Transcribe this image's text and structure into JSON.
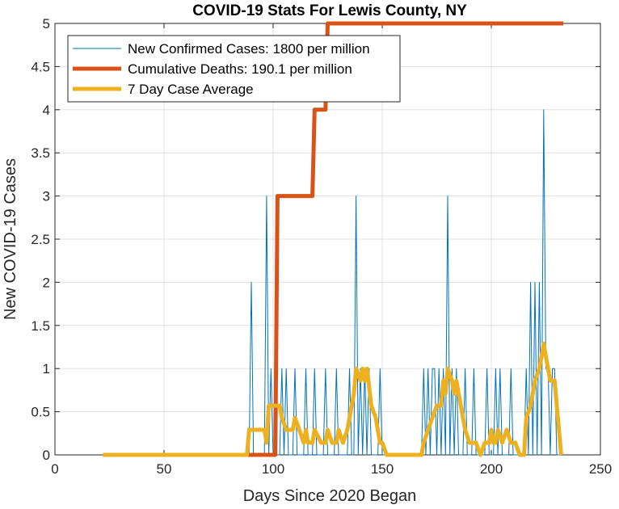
{
  "chart_data": {
    "type": "line",
    "title": "COVID-19 Stats For Lewis County, NY",
    "xlabel": "Days Since 2020 Began",
    "ylabel": "New COVID-19 Cases",
    "xlim": [
      0,
      250
    ],
    "ylim": [
      0,
      5
    ],
    "xticks": [
      0,
      50,
      100,
      150,
      200,
      250
    ],
    "yticks": [
      0,
      0.5,
      1,
      1.5,
      2,
      2.5,
      3,
      3.5,
      4,
      4.5,
      5
    ],
    "xtick_labels": [
      "0",
      "50",
      "100",
      "150",
      "200",
      "250"
    ],
    "ytick_labels": [
      "0",
      "0.5",
      "1",
      "1.5",
      "2",
      "2.5",
      "3",
      "3.5",
      "4",
      "4.5",
      "5"
    ],
    "grid": true,
    "legend_position": "top-left",
    "series": [
      {
        "name": "New Confirmed Cases: 1800 per million",
        "color": "#0072BD",
        "style": "thin",
        "points": [
          [
            22,
            0
          ],
          [
            89,
            0
          ],
          [
            90,
            2
          ],
          [
            91,
            0
          ],
          [
            96,
            0
          ],
          [
            97,
            3
          ],
          [
            98,
            0
          ],
          [
            99,
            1
          ],
          [
            100,
            0
          ],
          [
            103,
            0
          ],
          [
            104,
            1
          ],
          [
            105,
            0
          ],
          [
            106,
            1
          ],
          [
            107,
            0
          ],
          [
            109,
            0
          ],
          [
            110,
            1
          ],
          [
            111,
            0
          ],
          [
            114,
            0
          ],
          [
            115,
            1
          ],
          [
            116,
            0
          ],
          [
            118,
            0
          ],
          [
            119,
            1
          ],
          [
            120,
            0
          ],
          [
            123,
            0
          ],
          [
            124,
            1
          ],
          [
            125,
            0
          ],
          [
            128,
            0
          ],
          [
            129,
            1
          ],
          [
            130,
            0
          ],
          [
            134,
            0
          ],
          [
            135,
            1
          ],
          [
            136,
            0
          ],
          [
            137,
            0
          ],
          [
            138,
            3
          ],
          [
            139,
            0
          ],
          [
            140,
            1
          ],
          [
            141,
            0
          ],
          [
            142,
            1
          ],
          [
            143,
            0
          ],
          [
            144,
            1
          ],
          [
            145,
            0
          ],
          [
            148,
            0
          ],
          [
            149,
            1
          ],
          [
            150,
            0
          ],
          [
            168,
            0
          ],
          [
            169,
            1
          ],
          [
            170,
            0
          ],
          [
            171,
            1
          ],
          [
            172,
            0
          ],
          [
            173,
            1
          ],
          [
            174,
            1
          ],
          [
            175,
            0
          ],
          [
            176,
            1
          ],
          [
            177,
            0
          ],
          [
            178,
            1
          ],
          [
            179,
            0
          ],
          [
            180,
            3
          ],
          [
            181,
            0
          ],
          [
            182,
            1
          ],
          [
            183,
            0
          ],
          [
            184,
            1
          ],
          [
            185,
            0
          ],
          [
            187,
            0
          ],
          [
            188,
            1
          ],
          [
            189,
            0
          ],
          [
            191,
            0
          ],
          [
            192,
            1
          ],
          [
            193,
            0
          ],
          [
            197,
            0
          ],
          [
            198,
            1
          ],
          [
            199,
            0
          ],
          [
            201,
            0
          ],
          [
            202,
            1
          ],
          [
            203,
            0
          ],
          [
            204,
            1
          ],
          [
            205,
            0
          ],
          [
            208,
            0
          ],
          [
            209,
            1
          ],
          [
            210,
            0
          ],
          [
            215,
            0
          ],
          [
            216,
            1
          ],
          [
            217,
            0
          ],
          [
            218,
            2
          ],
          [
            219,
            0
          ],
          [
            220,
            2
          ],
          [
            221,
            0
          ],
          [
            222,
            2
          ],
          [
            223,
            0
          ],
          [
            224,
            4
          ],
          [
            225,
            1
          ],
          [
            226,
            1
          ],
          [
            227,
            0
          ],
          [
            228,
            1
          ],
          [
            229,
            1
          ],
          [
            230,
            0
          ],
          [
            232,
            0
          ]
        ]
      },
      {
        "name": "Cumulative Deaths: 190.1 per million",
        "color": "#D95319",
        "style": "thick",
        "points": [
          [
            22,
            0
          ],
          [
            101,
            0
          ],
          [
            102,
            3
          ],
          [
            118,
            3
          ],
          [
            119,
            4
          ],
          [
            124,
            4
          ],
          [
            125,
            5
          ],
          [
            233,
            5
          ]
        ]
      },
      {
        "name": "7 Day Case Average",
        "color": "#EDB120",
        "style": "thick",
        "points": [
          [
            22,
            0
          ],
          [
            88,
            0
          ],
          [
            89,
            0.29
          ],
          [
            96,
            0.29
          ],
          [
            97,
            0.14
          ],
          [
            98,
            0.57
          ],
          [
            103,
            0.57
          ],
          [
            104,
            0.43
          ],
          [
            106,
            0.29
          ],
          [
            109,
            0.29
          ],
          [
            110,
            0.43
          ],
          [
            112,
            0.29
          ],
          [
            114,
            0.14
          ],
          [
            115,
            0.29
          ],
          [
            116,
            0.14
          ],
          [
            118,
            0.14
          ],
          [
            119,
            0.29
          ],
          [
            122,
            0.14
          ],
          [
            124,
            0.14
          ],
          [
            125,
            0.29
          ],
          [
            127,
            0.14
          ],
          [
            129,
            0.14
          ],
          [
            130,
            0.29
          ],
          [
            132,
            0.14
          ],
          [
            134,
            0.29
          ],
          [
            135,
            0.43
          ],
          [
            137,
            0.71
          ],
          [
            138,
            1.0
          ],
          [
            140,
            0.86
          ],
          [
            141,
            1.0
          ],
          [
            142,
            0.86
          ],
          [
            143,
            1.0
          ],
          [
            145,
            0.57
          ],
          [
            147,
            0.43
          ],
          [
            149,
            0.14
          ],
          [
            150,
            0.14
          ],
          [
            152,
            0
          ],
          [
            168,
            0
          ],
          [
            169,
            0.14
          ],
          [
            171,
            0.29
          ],
          [
            173,
            0.43
          ],
          [
            175,
            0.57
          ],
          [
            177,
            0.57
          ],
          [
            178,
            0.86
          ],
          [
            179,
            0.71
          ],
          [
            180,
            1.0
          ],
          [
            182,
            0.86
          ],
          [
            183,
            0.71
          ],
          [
            184,
            0.86
          ],
          [
            186,
            0.57
          ],
          [
            188,
            0.29
          ],
          [
            190,
            0.14
          ],
          [
            193,
            0.14
          ],
          [
            195,
            0
          ],
          [
            197,
            0.14
          ],
          [
            199,
            0.14
          ],
          [
            200,
            0.29
          ],
          [
            201,
            0.14
          ],
          [
            202,
            0.14
          ],
          [
            203,
            0.29
          ],
          [
            205,
            0.14
          ],
          [
            207,
            0.29
          ],
          [
            209,
            0.14
          ],
          [
            211,
            0.14
          ],
          [
            213,
            0
          ],
          [
            215,
            0
          ],
          [
            216,
            0.43
          ],
          [
            218,
            0.57
          ],
          [
            220,
            0.86
          ],
          [
            222,
            1.0
          ],
          [
            223,
            1.14
          ],
          [
            224,
            1.29
          ],
          [
            225,
            1.14
          ],
          [
            226,
            1.0
          ],
          [
            227,
            0.86
          ],
          [
            229,
            0.86
          ],
          [
            230,
            0.57
          ],
          [
            231,
            0.29
          ],
          [
            232,
            0
          ]
        ]
      }
    ]
  }
}
